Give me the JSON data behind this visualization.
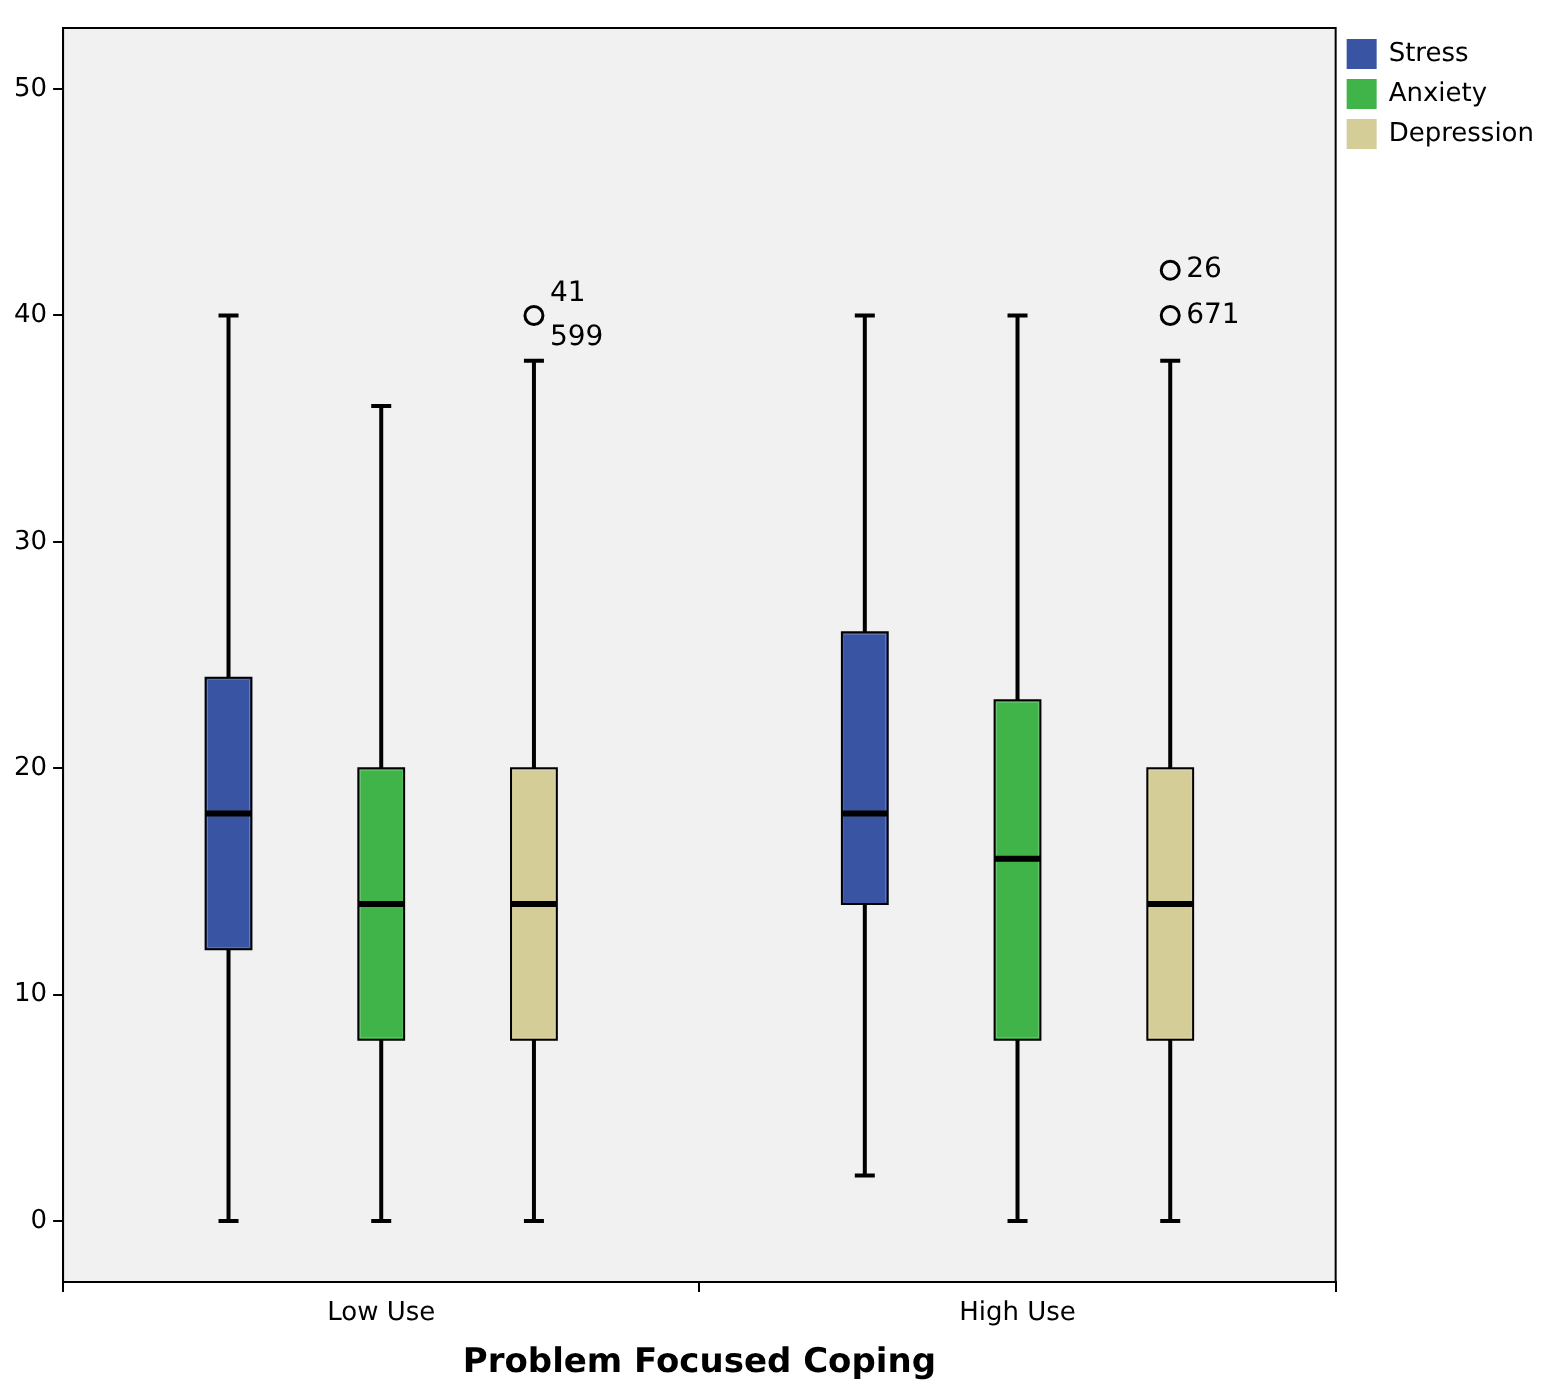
{
  "chart_data": {
    "type": "box",
    "xlabel": "Problem Focused Coping",
    "categories": [
      "Low Use",
      "High Use"
    ],
    "series": [
      {
        "name": "Stress",
        "color": "#3a54a4",
        "boxes": [
          {
            "low": 0,
            "q1": 12,
            "median": 18,
            "q3": 24,
            "high": 40
          },
          {
            "low": 2,
            "q1": 14,
            "median": 18,
            "q3": 26,
            "high": 40
          }
        ]
      },
      {
        "name": "Anxiety",
        "color": "#41b449",
        "boxes": [
          {
            "low": 0,
            "q1": 8,
            "median": 14,
            "q3": 20,
            "high": 36
          },
          {
            "low": 0,
            "q1": 8,
            "median": 16,
            "q3": 23,
            "high": 40
          }
        ]
      },
      {
        "name": "Depression",
        "color": "#d5cd98",
        "boxes": [
          {
            "low": 0,
            "q1": 8,
            "median": 14,
            "q3": 20,
            "high": 38,
            "outliers": [
              40
            ]
          },
          {
            "low": 0,
            "q1": 8,
            "median": 14,
            "q3": 20,
            "high": 38,
            "outliers": [
              42,
              40
            ]
          }
        ]
      }
    ],
    "annotations": [
      "41",
      "599",
      "26",
      "671"
    ],
    "ylim": [
      -2.7,
      52.7
    ],
    "yticks": [
      0,
      10,
      20,
      30,
      40,
      50
    ],
    "grid": false,
    "legend": "top right"
  }
}
